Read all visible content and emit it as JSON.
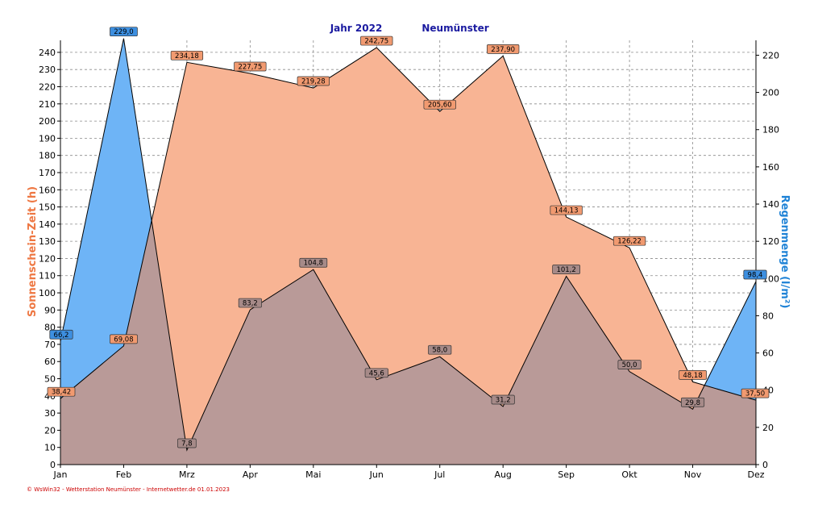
{
  "title": "Jahr  2022",
  "location": "Neumünster",
  "footer": "© WsWin32 - Wetterstation Neumünster - Internetwetter.de  01.01.2023",
  "colors": {
    "sun_fill": "#f8b494",
    "sun_label_bg": "#f19a70",
    "rain_fill": "#6eb4f6",
    "rain_label_bg": "#3d8fe0",
    "overlap_fill": "#b99a98",
    "overlap_label_bg": "#a68a88",
    "sun_axis_title": "#ee7742",
    "rain_axis_title": "#1e82d6",
    "title": "#1a1aa0",
    "footer": "#cc0000"
  },
  "chart_data": {
    "type": "area",
    "categories": [
      "Jan",
      "Feb",
      "Mrz",
      "Apr",
      "Mai",
      "Jun",
      "Jul",
      "Aug",
      "Sep",
      "Okt",
      "Nov",
      "Dez"
    ],
    "series": [
      {
        "name": "Sonnenschein-Zeit",
        "axis": "left",
        "values": [
          38.42,
          69.08,
          234.18,
          227.75,
          219.28,
          242.75,
          205.6,
          237.9,
          144.13,
          126.22,
          48.18,
          37.5
        ],
        "labels": [
          "38,42",
          "69,08",
          "234,18",
          "227,75",
          "219,28",
          "242,75",
          "205,60",
          "237,90",
          "144,13",
          "126,22",
          "48,18",
          "37,50"
        ]
      },
      {
        "name": "Regenmenge",
        "axis": "right",
        "values": [
          66.2,
          229.0,
          7.8,
          83.2,
          104.8,
          45.6,
          58.0,
          31.2,
          101.2,
          50.0,
          29.8,
          98.4
        ],
        "labels": [
          "66,2",
          "229,0",
          "7,8",
          "83,2",
          "104,8",
          "45,6",
          "58,0",
          "31,2",
          "101,2",
          "50,0",
          "29,8",
          "98,4"
        ]
      }
    ],
    "ylabel_left": "Sonnenschein-Zeit  (h)",
    "ylabel_right": "Regenmenge  (l/m²)",
    "ylim_left": [
      0,
      247
    ],
    "ylim_right": [
      0,
      228
    ],
    "yticks_left": [
      "0",
      "10",
      "20",
      "30",
      "40",
      "50",
      "60",
      "70",
      "80",
      "90",
      "100",
      "110",
      "120",
      "130",
      "140",
      "150",
      "160",
      "170",
      "180",
      "190",
      "200",
      "210",
      "220",
      "230",
      "240"
    ],
    "yticks_right": [
      "0",
      "20",
      "40",
      "60",
      "80",
      "100",
      "120",
      "140",
      "160",
      "180",
      "200",
      "220"
    ],
    "grid": true
  }
}
